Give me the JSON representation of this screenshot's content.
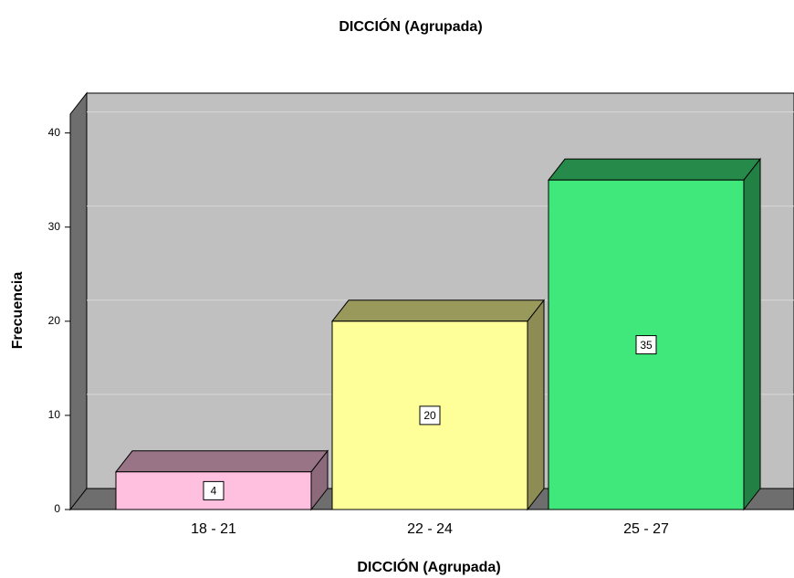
{
  "chart_data": {
    "type": "bar3d",
    "title": "DICCIÓN (Agrupada)",
    "x_label": "DICCIÓN (Agrupada)",
    "y_label": "Frecuencia",
    "categories": [
      "18 - 21",
      "22 - 24",
      "25 - 27"
    ],
    "values": [
      4,
      20,
      35
    ],
    "colors": [
      "#ffc0e0",
      "#ffff99",
      "#40e87c"
    ],
    "ylim": [
      0,
      42
    ],
    "yticks": [
      0,
      10,
      20,
      30,
      40
    ],
    "grid": true
  }
}
